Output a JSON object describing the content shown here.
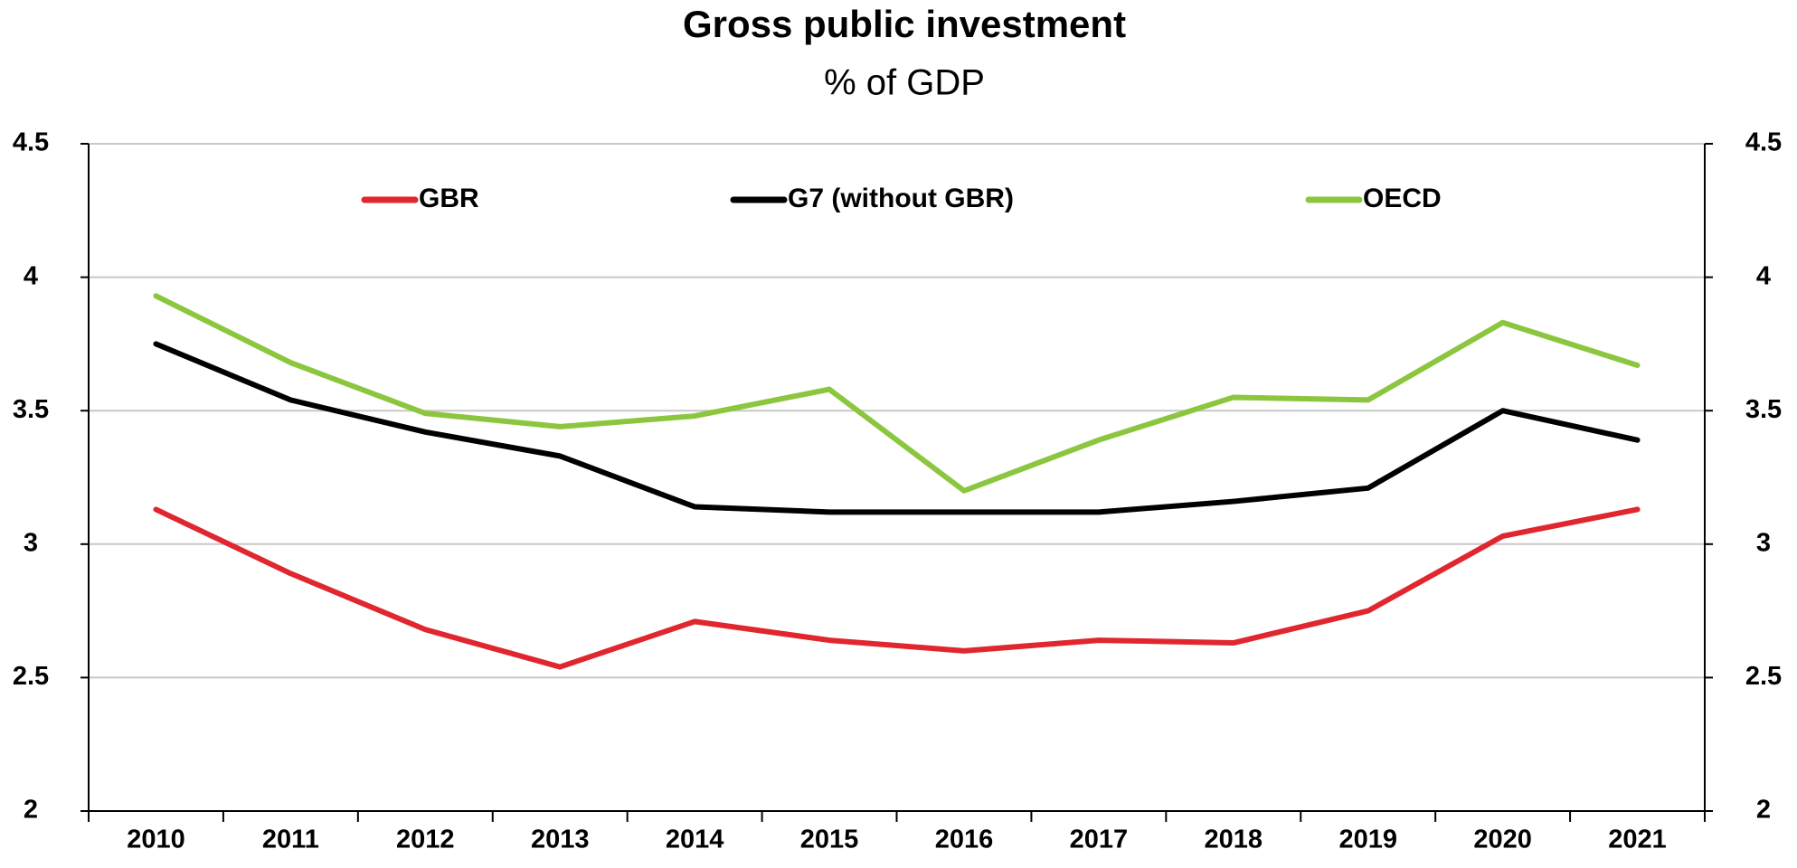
{
  "chart_data": {
    "type": "line",
    "title": "Gross public investment",
    "subtitle": "% of GDP",
    "categories": [
      "2010",
      "2011",
      "2012",
      "2013",
      "2014",
      "2015",
      "2016",
      "2017",
      "2018",
      "2019",
      "2020",
      "2021"
    ],
    "series": [
      {
        "name": "GBR",
        "color": "#e0262e",
        "values": [
          3.13,
          2.89,
          2.68,
          2.54,
          2.71,
          2.64,
          2.6,
          2.64,
          2.63,
          2.75,
          3.03,
          3.13
        ]
      },
      {
        "name": "G7 (without GBR)",
        "color": "#000000",
        "values": [
          3.75,
          3.54,
          3.42,
          3.33,
          3.14,
          3.12,
          3.12,
          3.12,
          3.16,
          3.21,
          3.5,
          3.39
        ]
      },
      {
        "name": "OECD",
        "color": "#8cc63f",
        "values": [
          3.93,
          3.68,
          3.49,
          3.44,
          3.48,
          3.58,
          3.2,
          3.39,
          3.55,
          3.54,
          3.83,
          3.67
        ]
      }
    ],
    "ylim": [
      2,
      4.5
    ],
    "yticks": [
      2,
      2.5,
      3,
      3.5,
      4,
      4.5
    ],
    "y2lim": [
      2,
      4.5
    ],
    "y2ticks": [
      2,
      2.5,
      3,
      3.5,
      4,
      4.5
    ],
    "grid": true,
    "legend": "top"
  }
}
